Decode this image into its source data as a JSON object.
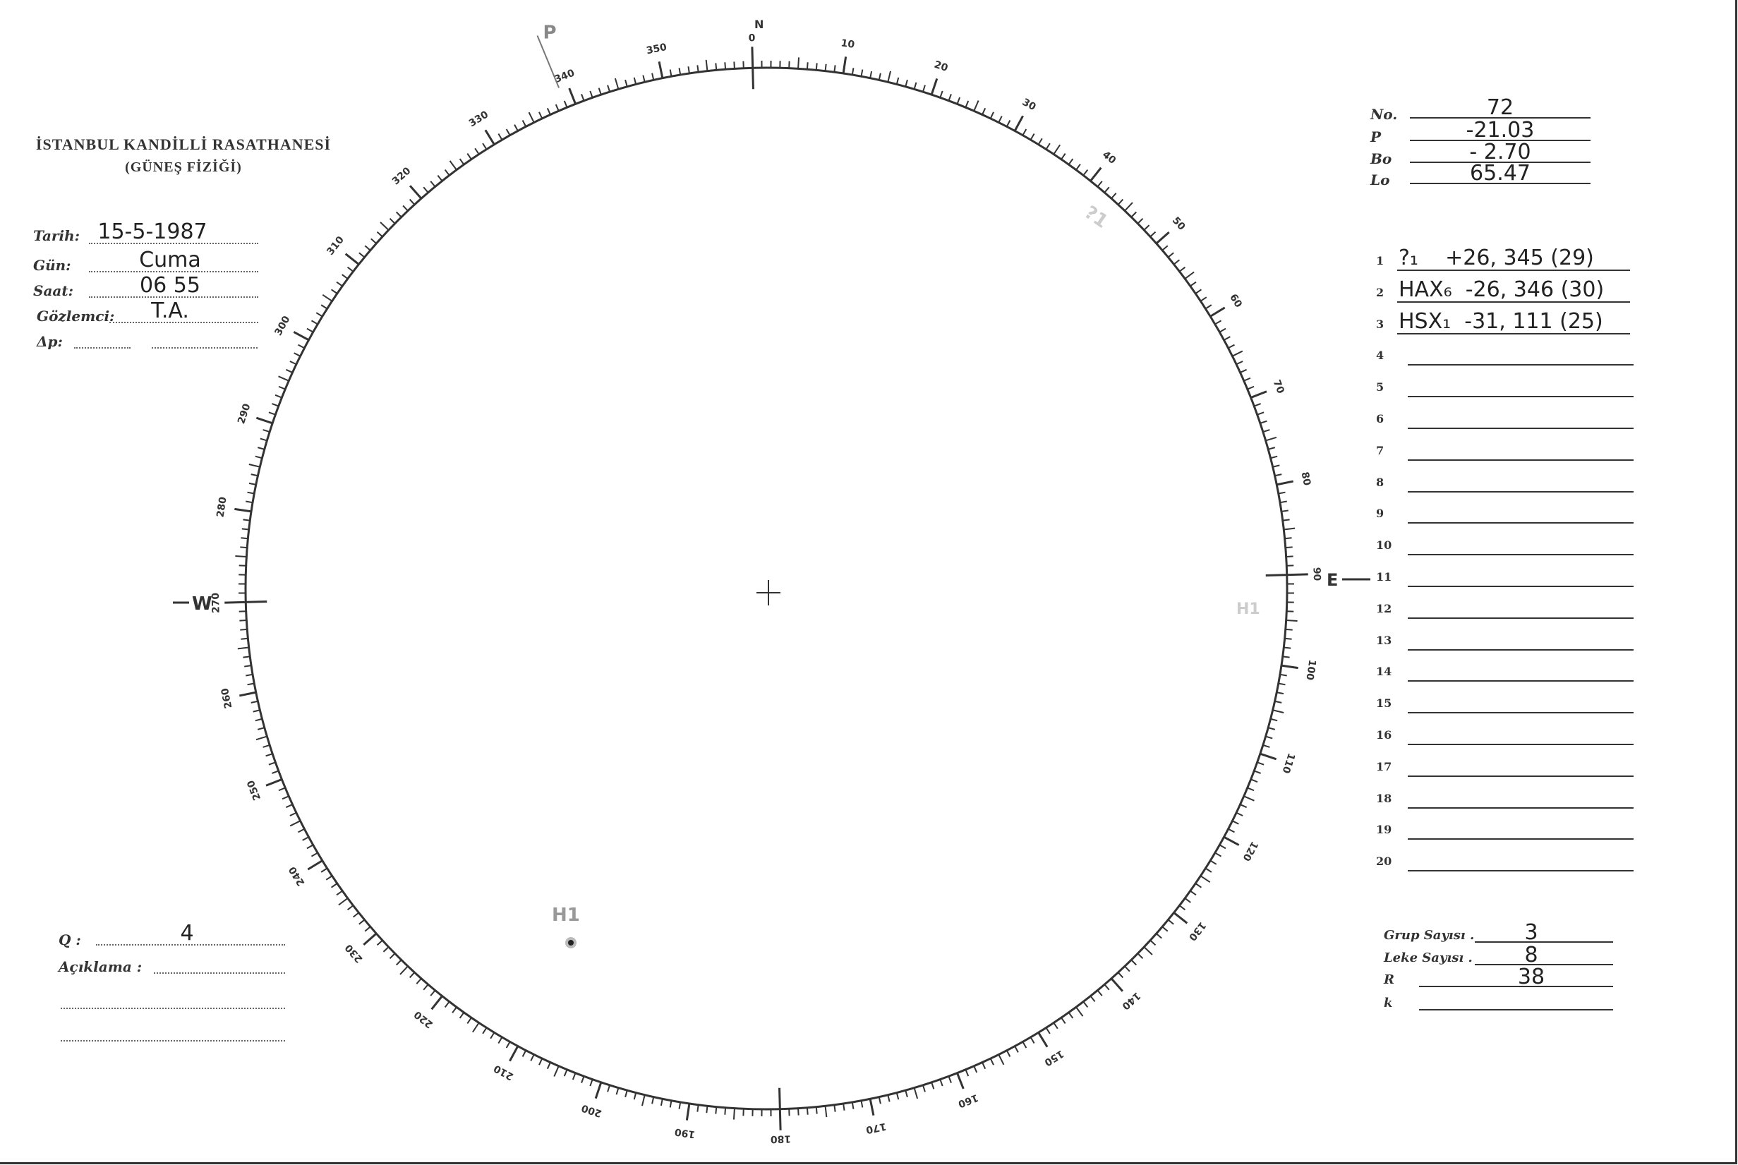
{
  "header": {
    "institution": "İSTANBUL KANDİLLİ RASATHANESİ",
    "department": "(GÜNEŞ FİZİĞİ)"
  },
  "observation": {
    "date_label": "Tarih:",
    "date_value": "15-5-1987",
    "day_label": "Gün:",
    "day_value": "Cuma",
    "time_label": "Saat:",
    "time_value": "06 55",
    "observer_label": "Gözlemci:",
    "observer_value": "T.A.",
    "delta_p_label": "Δp:",
    "delta_p_value": ""
  },
  "ephemeris": {
    "no_label": "No.",
    "no_value": "72",
    "p_label": "P",
    "p_value": "-21.03",
    "bo_label": "Bo",
    "bo_value": "- 2.70",
    "lo_label": "Lo",
    "lo_value": "65.47"
  },
  "groups": [
    {
      "n": "1",
      "text": "?₁    +26, 345 (29)"
    },
    {
      "n": "2",
      "text": "HAX₆  -26, 346 (30)"
    },
    {
      "n": "3",
      "text": "HSX₁  -31, 111 (25)"
    },
    {
      "n": "4",
      "text": ""
    },
    {
      "n": "5",
      "text": ""
    },
    {
      "n": "6",
      "text": ""
    },
    {
      "n": "7",
      "text": ""
    },
    {
      "n": "8",
      "text": ""
    },
    {
      "n": "9",
      "text": ""
    },
    {
      "n": "10",
      "text": ""
    },
    {
      "n": "11",
      "text": ""
    },
    {
      "n": "12",
      "text": ""
    },
    {
      "n": "13",
      "text": ""
    },
    {
      "n": "14",
      "text": ""
    },
    {
      "n": "15",
      "text": ""
    },
    {
      "n": "16",
      "text": ""
    },
    {
      "n": "17",
      "text": ""
    },
    {
      "n": "18",
      "text": ""
    },
    {
      "n": "19",
      "text": ""
    },
    {
      "n": "20",
      "text": ""
    }
  ],
  "summary": {
    "group_count_label": "Grup Sayısı .",
    "group_count_value": "3",
    "spot_count_label": "Leke Sayısı .",
    "spot_count_value": "8",
    "r_label": "R",
    "r_value": "38",
    "k_label": "k",
    "k_value": ""
  },
  "remarks": {
    "q_label": "Q :",
    "q_value": "4",
    "description_label": "Açıklama :"
  },
  "dial": {
    "north_label": "N",
    "east_label": "E",
    "west_label": "W",
    "p_marker_label": "P",
    "p_angle_deg": 339,
    "degree_labels": [
      "0",
      "10",
      "20",
      "30",
      "40",
      "50",
      "60",
      "70",
      "80",
      "90",
      "100",
      "110",
      "120",
      "130",
      "140",
      "150",
      "160",
      "170",
      "180",
      "190",
      "200",
      "210",
      "220",
      "230",
      "240",
      "250",
      "260",
      "270",
      "280",
      "290",
      "300",
      "310",
      "320",
      "330",
      "340",
      "350"
    ]
  },
  "sunspots": [
    {
      "label": "H1"
    }
  ],
  "faint_marks": [
    "?1",
    "H1"
  ]
}
